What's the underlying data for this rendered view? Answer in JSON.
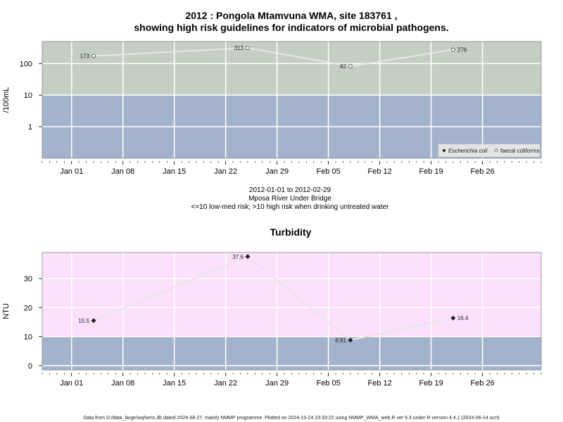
{
  "title": {
    "line1": "2012 : Pongola Mtamvuna WMA, site 183761 ,",
    "line2": "showing high risk guidelines for indicators of microbial pathogens."
  },
  "info": {
    "date_range": "2012-01-01 to 2012-02-29",
    "station": "Mposa River Under Bridge",
    "guideline": "<=10 low-med risk; >10 high risk when drinking untreated water"
  },
  "footer": "Data from D:/data_large/wq/wms.db dated 2024-08-27, mainly NMMP programme. Plotted on 2024-10-24 23:33:22 using NMMP_WMA_web.R ver 9.3 under R version 4.4.1 (2024-06-14 ucrt)",
  "colors": {
    "high_risk_zone_top": "#c4cec2",
    "low_risk_zone": "#a2b3cb",
    "high_risk_zone_bottom": "#fce0fc",
    "line": "#e6e6e6",
    "grid": "#ffffff"
  },
  "chart_data": [
    {
      "type": "line",
      "title": "",
      "ylabel": "/100mL",
      "yscale": "log",
      "ylim": [
        0.1,
        500
      ],
      "yticks": [
        1,
        10,
        100
      ],
      "ytick_labels": [
        "1",
        "10",
        "100"
      ],
      "threshold": 10,
      "x_range": [
        "2011-12-28",
        "2012-03-05"
      ],
      "xticks": [
        "2012-01-01",
        "2012-01-08",
        "2012-01-15",
        "2012-01-22",
        "2012-01-29",
        "2012-02-05",
        "2012-02-12",
        "2012-02-19",
        "2012-02-26"
      ],
      "xtick_labels": [
        "Jan 01",
        "Jan 08",
        "Jan 15",
        "Jan 22",
        "Jan 29",
        "Feb 05",
        "Feb 12",
        "Feb 19",
        "Feb 26"
      ],
      "legend": {
        "position": "bottom-right",
        "entries": [
          {
            "name": "Escherichia coli",
            "marker": "filled-diamond",
            "italic": true
          },
          {
            "name": "faecal coliforms",
            "marker": "open-circle",
            "italic": false
          }
        ]
      },
      "series": [
        {
          "name": "faecal coliforms",
          "marker": "open-circle",
          "points": [
            {
              "x": "2012-01-04",
              "y": 173,
              "label": "173"
            },
            {
              "x": "2012-01-25",
              "y": 313,
              "label": "313"
            },
            {
              "x": "2012-02-08",
              "y": 82,
              "label": "82"
            },
            {
              "x": "2012-02-22",
              "y": 276,
              "label": "276"
            }
          ]
        }
      ]
    },
    {
      "type": "line",
      "title": "Turbidity",
      "ylabel": "NTU",
      "yscale": "linear",
      "ylim": [
        -1.5,
        39
      ],
      "yticks": [
        0,
        10,
        20,
        30
      ],
      "ytick_labels": [
        "0",
        "10",
        "20",
        "30"
      ],
      "threshold": 10,
      "x_range": [
        "2011-12-28",
        "2012-03-05"
      ],
      "xticks": [
        "2012-01-01",
        "2012-01-08",
        "2012-01-15",
        "2012-01-22",
        "2012-01-29",
        "2012-02-05",
        "2012-02-12",
        "2012-02-19",
        "2012-02-26"
      ],
      "xtick_labels": [
        "Jan 01",
        "Jan 08",
        "Jan 15",
        "Jan 22",
        "Jan 29",
        "Feb 05",
        "Feb 12",
        "Feb 19",
        "Feb 26"
      ],
      "series": [
        {
          "marker": "filled-diamond",
          "points": [
            {
              "x": "2012-01-04",
              "y": 15.5,
              "label": "15.5"
            },
            {
              "x": "2012-01-25",
              "y": 37.6,
              "label": "37.6"
            },
            {
              "x": "2012-02-08",
              "y": 8.81,
              "label": "8.81"
            },
            {
              "x": "2012-02-22",
              "y": 16.4,
              "label": "16.4"
            }
          ]
        }
      ]
    }
  ]
}
